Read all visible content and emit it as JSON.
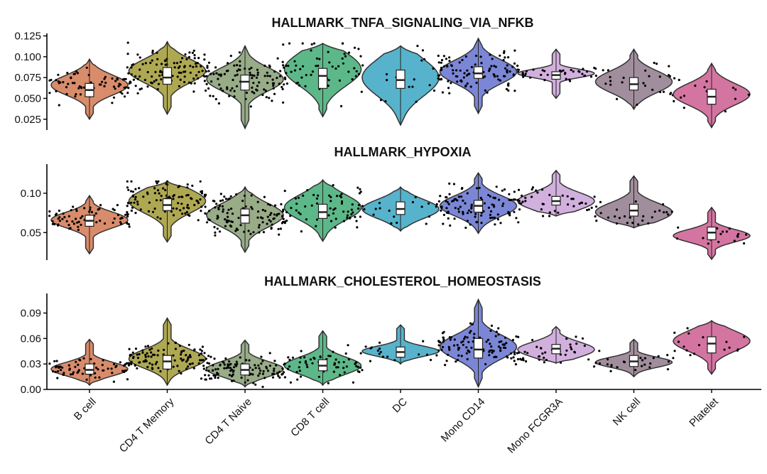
{
  "chart_data": {
    "type": "violin",
    "categories": [
      "B cell",
      "CD4 T Memory",
      "CD4 T Naive",
      "CD8 T cell",
      "DC",
      "Mono CD14",
      "Mono FCGR3A",
      "NK cell",
      "Platelet"
    ],
    "colors": [
      "#D98C6B",
      "#AEA853",
      "#98AC88",
      "#5DB889",
      "#57B3CC",
      "#7B87D6",
      "#D2B0DE",
      "#A18E9D",
      "#D475A1"
    ],
    "panels": [
      {
        "title": "HALLMARK_TNFA_SIGNALING_VIA_NFKB",
        "ylim": [
          0.012,
          0.128
        ],
        "yticks": [
          0.025,
          0.05,
          0.075,
          0.1,
          0.125
        ],
        "ytick_labels": [
          "0.025",
          "0.050",
          "0.075",
          "0.100",
          "0.125"
        ],
        "series": [
          {
            "name": "B cell",
            "min": 0.025,
            "max": 0.097,
            "q1": 0.052,
            "median": 0.06,
            "q3": 0.068,
            "mode": 0.066,
            "spread": 0.012,
            "npoints": 70
          },
          {
            "name": "CD4 T Memory",
            "min": 0.031,
            "max": 0.118,
            "q1": 0.067,
            "median": 0.075,
            "q3": 0.087,
            "mode": 0.083,
            "spread": 0.014,
            "npoints": 110
          },
          {
            "name": "CD4 T Naive",
            "min": 0.014,
            "max": 0.113,
            "q1": 0.06,
            "median": 0.07,
            "q3": 0.078,
            "mode": 0.073,
            "spread": 0.014,
            "npoints": 110
          },
          {
            "name": "CD8 T cell",
            "min": 0.028,
            "max": 0.116,
            "q1": 0.062,
            "median": 0.077,
            "q3": 0.086,
            "mode": 0.085,
            "spread": 0.02,
            "npoints": 65
          },
          {
            "name": "DC",
            "min": 0.018,
            "max": 0.113,
            "q1": 0.062,
            "median": 0.072,
            "q3": 0.084,
            "mode": 0.075,
            "spread": 0.022,
            "npoints": 18
          },
          {
            "name": "Mono CD14",
            "min": 0.032,
            "max": 0.122,
            "q1": 0.074,
            "median": 0.08,
            "q3": 0.088,
            "mode": 0.082,
            "spread": 0.014,
            "npoints": 110
          },
          {
            "name": "Mono FCGR3A",
            "min": 0.05,
            "max": 0.109,
            "q1": 0.073,
            "median": 0.078,
            "q3": 0.082,
            "mode": 0.08,
            "spread": 0.005,
            "npoints": 40
          },
          {
            "name": "NK cell",
            "min": 0.037,
            "max": 0.109,
            "q1": 0.06,
            "median": 0.067,
            "q3": 0.075,
            "mode": 0.07,
            "spread": 0.013,
            "npoints": 28
          },
          {
            "name": "Platelet",
            "min": 0.015,
            "max": 0.092,
            "q1": 0.043,
            "median": 0.052,
            "q3": 0.061,
            "mode": 0.055,
            "spread": 0.013,
            "npoints": 18
          }
        ]
      },
      {
        "title": "HALLMARK_HYPOXIA",
        "ylim": [
          0.015,
          0.137
        ],
        "yticks": [
          0.05,
          0.1
        ],
        "ytick_labels": [
          "0.05",
          "0.10"
        ],
        "series": [
          {
            "name": "B cell",
            "min": 0.023,
            "max": 0.097,
            "q1": 0.058,
            "median": 0.065,
            "q3": 0.072,
            "mode": 0.066,
            "spread": 0.01,
            "npoints": 70
          },
          {
            "name": "CD4 T Memory",
            "min": 0.038,
            "max": 0.115,
            "q1": 0.078,
            "median": 0.085,
            "q3": 0.093,
            "mode": 0.09,
            "spread": 0.015,
            "npoints": 110
          },
          {
            "name": "CD4 T Naive",
            "min": 0.025,
            "max": 0.108,
            "q1": 0.062,
            "median": 0.072,
            "q3": 0.08,
            "mode": 0.072,
            "spread": 0.015,
            "npoints": 110
          },
          {
            "name": "CD8 T cell",
            "min": 0.039,
            "max": 0.117,
            "q1": 0.068,
            "median": 0.076,
            "q3": 0.086,
            "mode": 0.082,
            "spread": 0.016,
            "npoints": 65
          },
          {
            "name": "DC",
            "min": 0.052,
            "max": 0.108,
            "q1": 0.073,
            "median": 0.08,
            "q3": 0.089,
            "mode": 0.08,
            "spread": 0.012,
            "npoints": 18
          },
          {
            "name": "Mono CD14",
            "min": 0.049,
            "max": 0.126,
            "q1": 0.076,
            "median": 0.084,
            "q3": 0.091,
            "mode": 0.084,
            "spread": 0.013,
            "npoints": 110
          },
          {
            "name": "Mono FCGR3A",
            "min": 0.071,
            "max": 0.129,
            "q1": 0.085,
            "median": 0.09,
            "q3": 0.096,
            "mode": 0.09,
            "spread": 0.011,
            "npoints": 40
          },
          {
            "name": "NK cell",
            "min": 0.056,
            "max": 0.122,
            "q1": 0.071,
            "median": 0.078,
            "q3": 0.086,
            "mode": 0.076,
            "spread": 0.012,
            "npoints": 28
          },
          {
            "name": "Platelet",
            "min": 0.016,
            "max": 0.082,
            "q1": 0.041,
            "median": 0.05,
            "q3": 0.057,
            "mode": 0.046,
            "spread": 0.008,
            "npoints": 18
          }
        ]
      },
      {
        "title": "HALLMARK_CHOLESTEROL_HOMEOSTASIS",
        "ylim": [
          0.0,
          0.113
        ],
        "yticks": [
          0.0,
          0.03,
          0.06,
          0.09
        ],
        "ytick_labels": [
          "0.00",
          "0.03",
          "0.06",
          "0.09"
        ],
        "series": [
          {
            "name": "B cell",
            "min": 0.005,
            "max": 0.059,
            "q1": 0.018,
            "median": 0.023,
            "q3": 0.03,
            "mode": 0.024,
            "spread": 0.008,
            "npoints": 70
          },
          {
            "name": "CD4 T Memory",
            "min": 0.005,
            "max": 0.084,
            "q1": 0.024,
            "median": 0.033,
            "q3": 0.04,
            "mode": 0.036,
            "spread": 0.011,
            "npoints": 110
          },
          {
            "name": "CD4 T Naive",
            "min": 0.003,
            "max": 0.058,
            "q1": 0.017,
            "median": 0.023,
            "q3": 0.03,
            "mode": 0.024,
            "spread": 0.009,
            "npoints": 110
          },
          {
            "name": "CD8 T cell",
            "min": 0.005,
            "max": 0.069,
            "q1": 0.022,
            "median": 0.028,
            "q3": 0.035,
            "mode": 0.028,
            "spread": 0.01,
            "npoints": 65
          },
          {
            "name": "DC",
            "min": 0.03,
            "max": 0.076,
            "q1": 0.038,
            "median": 0.044,
            "q3": 0.05,
            "mode": 0.045,
            "spread": 0.006,
            "npoints": 18
          },
          {
            "name": "Mono CD14",
            "min": 0.003,
            "max": 0.106,
            "q1": 0.037,
            "median": 0.047,
            "q3": 0.06,
            "mode": 0.05,
            "spread": 0.014,
            "npoints": 110
          },
          {
            "name": "Mono FCGR3A",
            "min": 0.031,
            "max": 0.074,
            "q1": 0.042,
            "median": 0.048,
            "q3": 0.053,
            "mode": 0.047,
            "spread": 0.009,
            "npoints": 40
          },
          {
            "name": "NK cell",
            "min": 0.015,
            "max": 0.059,
            "q1": 0.027,
            "median": 0.033,
            "q3": 0.04,
            "mode": 0.032,
            "spread": 0.006,
            "npoints": 28
          },
          {
            "name": "Platelet",
            "min": 0.018,
            "max": 0.081,
            "q1": 0.043,
            "median": 0.054,
            "q3": 0.062,
            "mode": 0.057,
            "spread": 0.012,
            "npoints": 18
          }
        ]
      }
    ],
    "xlabel": "",
    "ylabel": "",
    "legend": "none"
  }
}
